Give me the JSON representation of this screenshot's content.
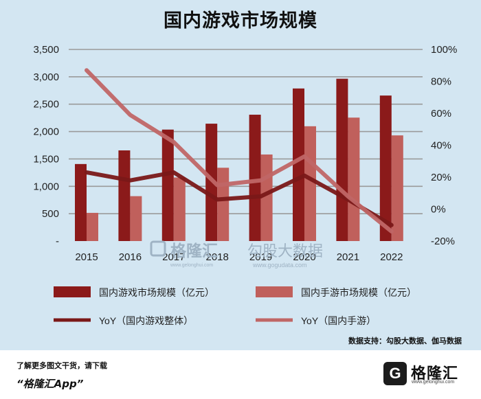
{
  "title": "国内游戏市场规模",
  "source": "数据支持：勾股大数据、伽马数据",
  "watermark": {
    "left_brand": "格隆汇",
    "left_url": "www.gelonghui.com",
    "right_brand": "勾股大数据",
    "right_url": "www.gogudata.com"
  },
  "footer": {
    "promo_line1": "了解更多图文干货，请下载",
    "promo_line2": "“格隆汇App”",
    "logo_glyph": "G",
    "logo_name": "格隆汇",
    "logo_url": "www.gelonghui.com"
  },
  "chart_data": {
    "type": "bar",
    "categories": [
      "2015",
      "2016",
      "2017",
      "2018",
      "2019",
      "2020",
      "2021",
      "2022"
    ],
    "y_left_ticks": [
      "-",
      "500",
      "1,000",
      "1,500",
      "2,000",
      "2,500",
      "3,000",
      "3,500"
    ],
    "y_right_ticks": [
      "-20%",
      "0%",
      "20%",
      "40%",
      "60%",
      "80%",
      "100%"
    ],
    "ylim_left": [
      0,
      3500
    ],
    "ylim_right": [
      -20,
      100
    ],
    "grid": true,
    "legend_position": "bottom",
    "series": [
      {
        "name": "国内游戏市场规模（亿元）",
        "kind": "bar",
        "axis": "left",
        "color": "#8b1a1a",
        "values": [
          1407,
          1656,
          2036,
          2144,
          2308,
          2787,
          2965,
          2658
        ]
      },
      {
        "name": "国内手游市场规模（亿元）",
        "kind": "bar",
        "axis": "left",
        "color": "#c0605c",
        "values": [
          515,
          820,
          1161,
          1339,
          1581,
          2097,
          2255,
          1930
        ]
      },
      {
        "name": "YoY（国内游戏整体）",
        "kind": "line",
        "axis": "right",
        "color": "#7a1818",
        "values": [
          23,
          18,
          23,
          6,
          8,
          21,
          6,
          -10
        ]
      },
      {
        "name": "YoY（国内手游）",
        "kind": "line",
        "axis": "right",
        "color": "#c06666",
        "values": [
          87,
          59,
          42,
          15,
          18,
          33,
          8,
          -14
        ]
      }
    ]
  }
}
